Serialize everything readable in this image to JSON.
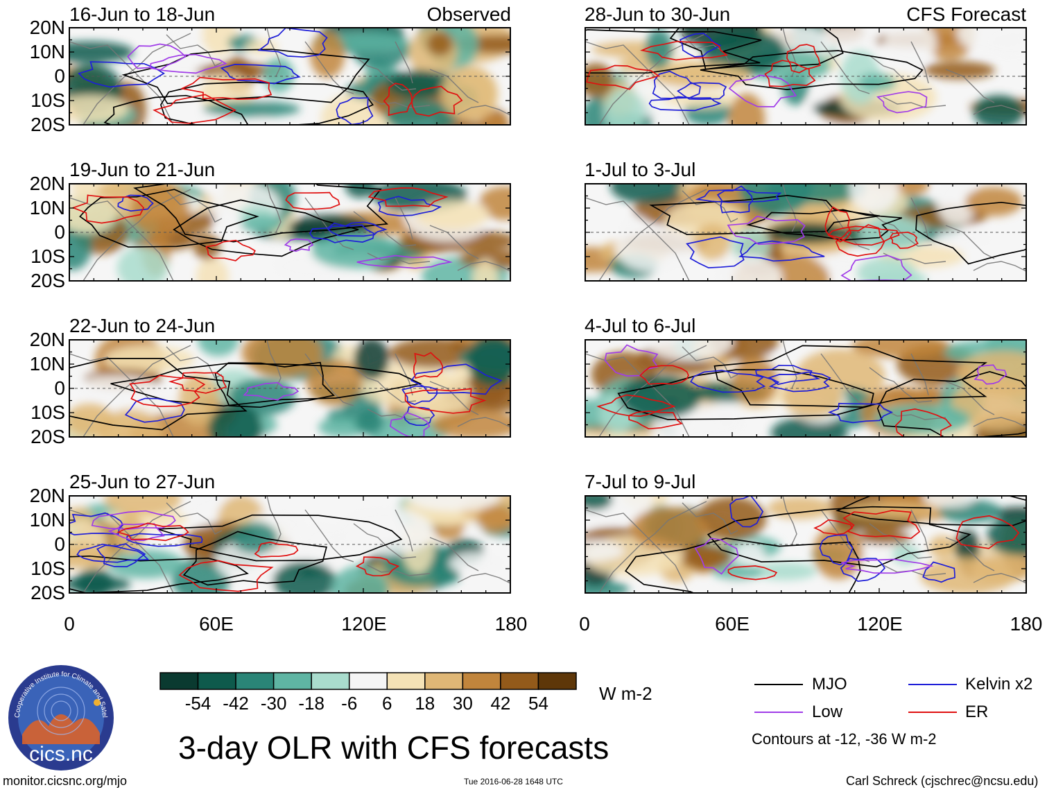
{
  "figure_title": "3-day OLR with CFS forecasts",
  "column_titles": {
    "left": "Observed",
    "right": "CFS Forecast"
  },
  "panels": [
    {
      "period": "16-Jun to 18-Jun",
      "type": "observed"
    },
    {
      "period": "19-Jun to 21-Jun",
      "type": "observed"
    },
    {
      "period": "22-Jun to 24-Jun",
      "type": "observed"
    },
    {
      "period": "25-Jun to 27-Jun",
      "type": "observed"
    },
    {
      "period": "28-Jun to 30-Jun",
      "type": "forecast"
    },
    {
      "period": "1-Jul to 3-Jul",
      "type": "forecast"
    },
    {
      "period": "4-Jul to 6-Jul",
      "type": "forecast"
    },
    {
      "period": "7-Jul to 9-Jul",
      "type": "forecast"
    }
  ],
  "lat_labels": [
    "20N",
    "10N",
    "0",
    "10S",
    "20S"
  ],
  "lon_labels": [
    "0",
    "60E",
    "120E",
    "180"
  ],
  "colorbar": {
    "labels": [
      "-54",
      "-42",
      "-30",
      "-18",
      "-6",
      "6",
      "18",
      "30",
      "42",
      "54"
    ],
    "colors": [
      "#0a3a30",
      "#0e5a4c",
      "#2a8577",
      "#5fb5a3",
      "#a9dccd",
      "#f5f5f5",
      "#f4e2b6",
      "#dfb776",
      "#c1853c",
      "#935a1a",
      "#5e3709"
    ],
    "units": "W m-2"
  },
  "legend": {
    "items": [
      {
        "label": "MJO",
        "color": "#000000"
      },
      {
        "label": "Kelvin x2",
        "color": "#1e1ed8"
      },
      {
        "label": "Low",
        "color": "#a03ce8"
      },
      {
        "label": "ER",
        "color": "#e01010"
      }
    ],
    "note": "Contours at -12, -36 W m-2"
  },
  "logo_text": "cics.nc",
  "logo_ring_text": "Cooperative Institute for Climate and Satellites",
  "footer": {
    "left": "monitor.cicsnc.org/mjo",
    "center": "Tue 2016-06-28 1648 UTC",
    "right": "Carl Schreck (cjschrec@ncsu.edu)"
  }
}
